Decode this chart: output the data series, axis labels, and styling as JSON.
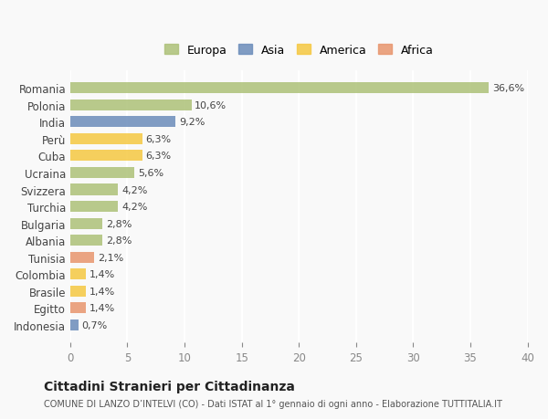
{
  "countries": [
    "Romania",
    "Polonia",
    "India",
    "Perù",
    "Cuba",
    "Ucraina",
    "Svizzera",
    "Turchia",
    "Bulgaria",
    "Albania",
    "Tunisia",
    "Colombia",
    "Brasile",
    "Egitto",
    "Indonesia"
  ],
  "values": [
    36.6,
    10.6,
    9.2,
    6.3,
    6.3,
    5.6,
    4.2,
    4.2,
    2.8,
    2.8,
    2.1,
    1.4,
    1.4,
    1.4,
    0.7
  ],
  "labels": [
    "36,6%",
    "10,6%",
    "9,2%",
    "6,3%",
    "6,3%",
    "5,6%",
    "4,2%",
    "4,2%",
    "2,8%",
    "2,8%",
    "2,1%",
    "1,4%",
    "1,4%",
    "1,4%",
    "0,7%"
  ],
  "continents": [
    "Europa",
    "Europa",
    "Asia",
    "America",
    "America",
    "Europa",
    "Europa",
    "Europa",
    "Europa",
    "Europa",
    "Africa",
    "America",
    "America",
    "Africa",
    "Asia"
  ],
  "colors": {
    "Europa": "#adc178",
    "Asia": "#6b8cba",
    "America": "#f5c842",
    "Africa": "#e8956d"
  },
  "legend_colors": {
    "Europa": "#adc178",
    "Asia": "#6b8cba",
    "America": "#f5c842",
    "Africa": "#e8956d"
  },
  "xlim": [
    0,
    40
  ],
  "xticks": [
    0,
    5,
    10,
    15,
    20,
    25,
    30,
    35,
    40
  ],
  "title": "Cittadini Stranieri per Cittadinanza",
  "subtitle": "COMUNE DI LANZO D’INTELVI (CO) - Dati ISTAT al 1° gennaio di ogni anno - Elaborazione TUTTITALIA.IT",
  "background_color": "#f9f9f9",
  "grid_color": "#ffffff",
  "bar_alpha": 0.85
}
